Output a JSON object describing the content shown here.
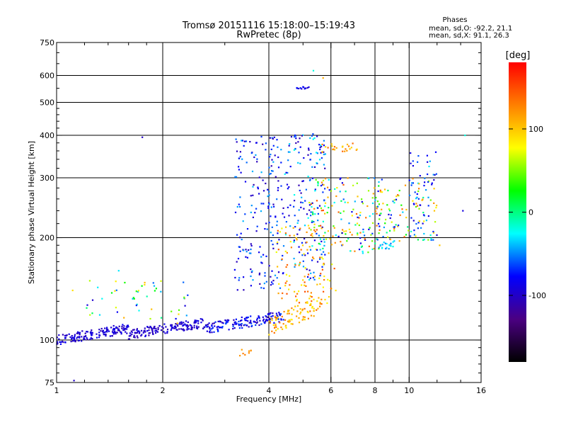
{
  "chart_data": {
    "type": "scatter",
    "title": "Tromsø 20151116 15:18:00–15:19:43",
    "subtitle": "RwPretec (8p)",
    "xlabel": "Frequency [MHz]",
    "ylabel": "Stationary phase Virtual Height [km]",
    "x_scale": "log",
    "y_scale": "log",
    "xlim": [
      1,
      16
    ],
    "ylim": [
      75,
      750
    ],
    "x_ticks": [
      1,
      2,
      4,
      6,
      8,
      10,
      16
    ],
    "x_tick_labels": [
      "1",
      "2",
      "4",
      "6",
      "8",
      "10",
      "16"
    ],
    "x_minor_ticks": [
      1.2,
      1.4,
      1.6,
      1.8,
      3,
      5,
      7,
      9,
      12,
      14
    ],
    "y_ticks": [
      75,
      100,
      200,
      300,
      400,
      500,
      600,
      750
    ],
    "y_tick_labels": [
      "75",
      "100",
      "200",
      "300",
      "400",
      "500",
      "600",
      "750"
    ],
    "grid": true,
    "grid_x": [
      2,
      4,
      6,
      8,
      10
    ],
    "grid_y": [
      100,
      200,
      300,
      400,
      500,
      600
    ],
    "stats": {
      "heading": "Phases",
      "line_o": "mean, sd,O: -92.2, 21.1",
      "line_x": "mean, sd,X:  91.1, 26.3"
    },
    "colorbar": {
      "label": "[deg]",
      "range": [
        -180,
        180
      ],
      "ticks": [
        100,
        0,
        -100
      ],
      "tick_labels": [
        "100",
        "0",
        "-100"
      ],
      "colormap": "rainbow",
      "stops": [
        "#000000",
        "#4b0082",
        "#0000ff",
        "#00ffff",
        "#00ff00",
        "#ffff00",
        "#ff8000",
        "#ff0000"
      ]
    },
    "clusters": [
      {
        "f": [
          1.0,
          1.6
        ],
        "h": [
          100,
          112
        ],
        "phase": [
          -110,
          -80
        ],
        "n": 160,
        "trend": true
      },
      {
        "f": [
          1.6,
          2.6
        ],
        "h": [
          104,
          116
        ],
        "phase": [
          -110,
          -85
        ],
        "n": 150,
        "trend": true
      },
      {
        "f": [
          2.6,
          4.4
        ],
        "h": [
          108,
          122
        ],
        "phase": [
          -110,
          -60
        ],
        "n": 160,
        "trend": true
      },
      {
        "f": [
          4.0,
          5.6
        ],
        "h": [
          110,
          135
        ],
        "phase": [
          80,
          140
        ],
        "n": 90,
        "trend": true
      },
      {
        "f": [
          1.2,
          2.4
        ],
        "h": [
          115,
          150
        ],
        "phase": [
          -100,
          120
        ],
        "n": 50
      },
      {
        "f": [
          3.2,
          4.4
        ],
        "h": [
          140,
          400
        ],
        "phase": [
          -110,
          -40
        ],
        "n": 190
      },
      {
        "f": [
          4.4,
          5.8
        ],
        "h": [
          150,
          410
        ],
        "phase": [
          -110,
          -20
        ],
        "n": 160
      },
      {
        "f": [
          4.2,
          6.2
        ],
        "h": [
          125,
          220
        ],
        "phase": [
          70,
          150
        ],
        "n": 110
      },
      {
        "f": [
          5.2,
          8.4
        ],
        "h": [
          180,
          300
        ],
        "phase": [
          -100,
          150
        ],
        "n": 170
      },
      {
        "f": [
          5.6,
          7.2
        ],
        "h": [
          355,
          380
        ],
        "phase": [
          90,
          140
        ],
        "n": 25
      },
      {
        "f": [
          8.0,
          12.0
        ],
        "h": [
          195,
          300
        ],
        "phase": [
          -100,
          140
        ],
        "n": 110
      },
      {
        "f": [
          8.2,
          9.0
        ],
        "h": [
          185,
          195
        ],
        "phase": [
          -60,
          -20
        ],
        "n": 18
      },
      {
        "f": [
          10.0,
          12.0
        ],
        "h": [
          200,
          360
        ],
        "phase": [
          -100,
          -30
        ],
        "n": 40
      },
      {
        "f": [
          4.8,
          5.3
        ],
        "h": [
          548,
          556
        ],
        "phase": [
          -100,
          -70
        ],
        "n": 12
      },
      {
        "f": [
          3.3,
          3.6
        ],
        "h": [
          90,
          94
        ],
        "phase": [
          110,
          130
        ],
        "n": 8
      }
    ],
    "points": [
      {
        "f": 1.75,
        "h": 395,
        "phase": -100
      },
      {
        "f": 14.4,
        "h": 400,
        "phase": -20
      },
      {
        "f": 14.2,
        "h": 240,
        "phase": -90
      },
      {
        "f": 1.12,
        "h": 76,
        "phase": -100
      },
      {
        "f": 1.11,
        "h": 140,
        "phase": 90
      },
      {
        "f": 1.5,
        "h": 160,
        "phase": -30
      },
      {
        "f": 5.35,
        "h": 620,
        "phase": -20
      },
      {
        "f": 5.7,
        "h": 590,
        "phase": 110
      },
      {
        "f": 2.2,
        "h": 112,
        "phase": 100
      },
      {
        "f": 12.2,
        "h": 190,
        "phase": 100
      }
    ]
  }
}
